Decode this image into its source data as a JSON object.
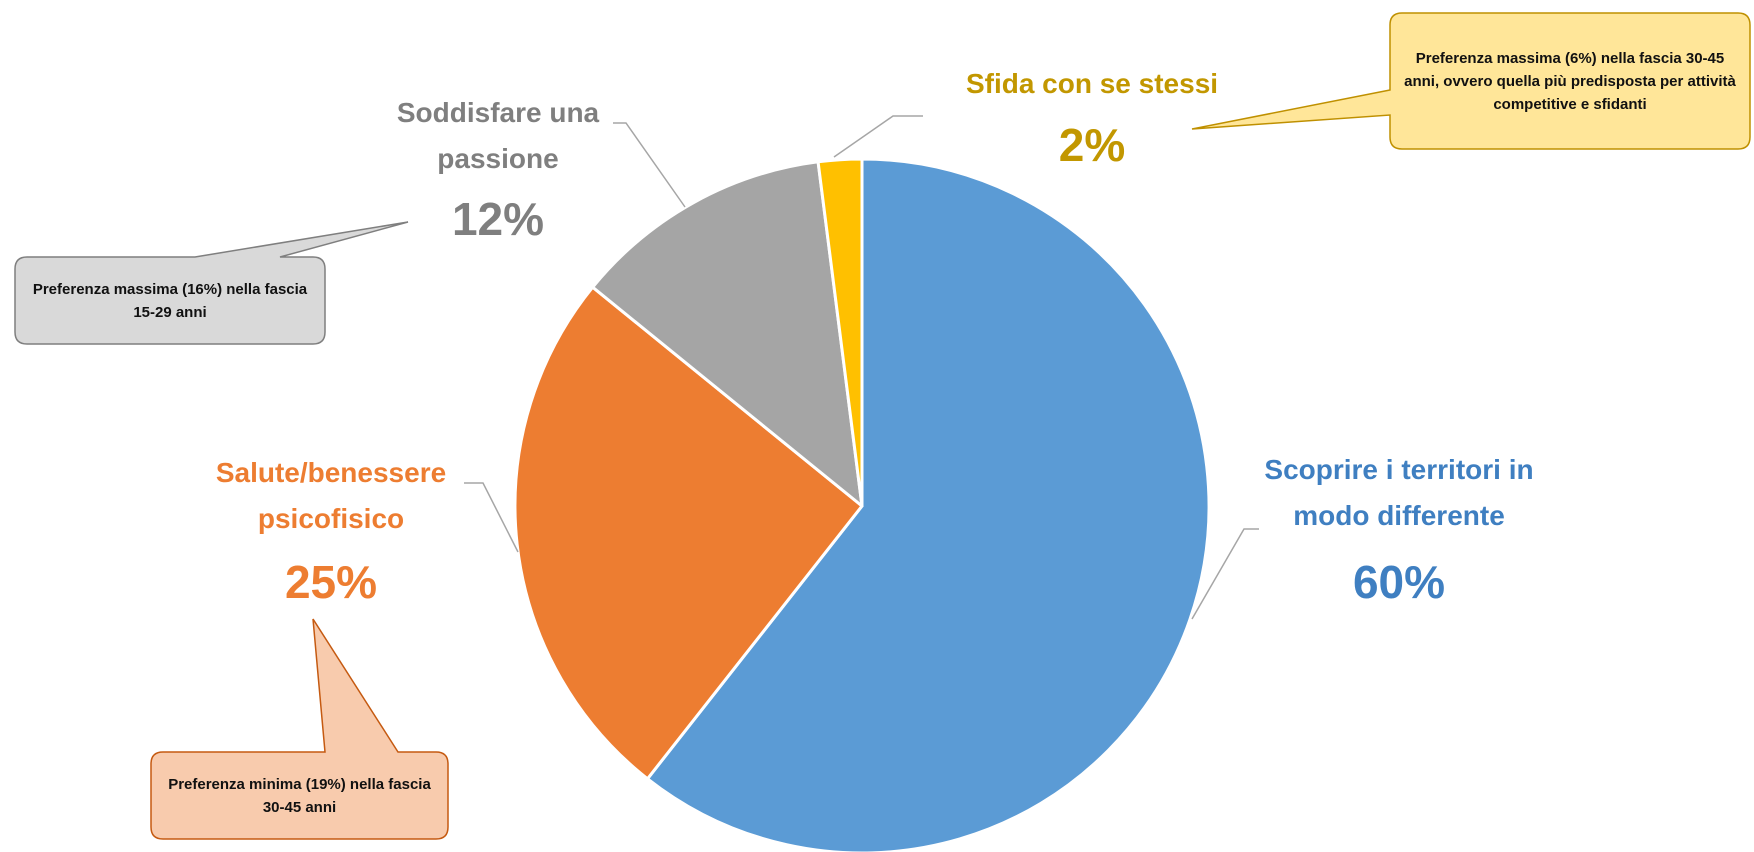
{
  "chart_data": {
    "type": "pie",
    "categories": [
      "Scoprire i territori in modo differente",
      "Salute/benessere psicofisico",
      "Soddisfare una passione",
      "Sfida con se stessi"
    ],
    "values": [
      60,
      25,
      12,
      2
    ],
    "value_labels": [
      "60%",
      "25%",
      "12%",
      "2%"
    ],
    "colors": [
      "#5b9bd5",
      "#ed7d31",
      "#a5a5a5",
      "#ffc000"
    ],
    "annotations": [
      {
        "text": "Preferenza massima (6%) nella fascia 30-45 anni, ovvero quella più predisposta per attività competitive e sfidanti"
      },
      {
        "text": "Preferenza massima (16%) nella fascia 15-29 anni"
      },
      {
        "text": "Preferenza minima (19%) nella fascia 30-45 anni"
      }
    ]
  }
}
